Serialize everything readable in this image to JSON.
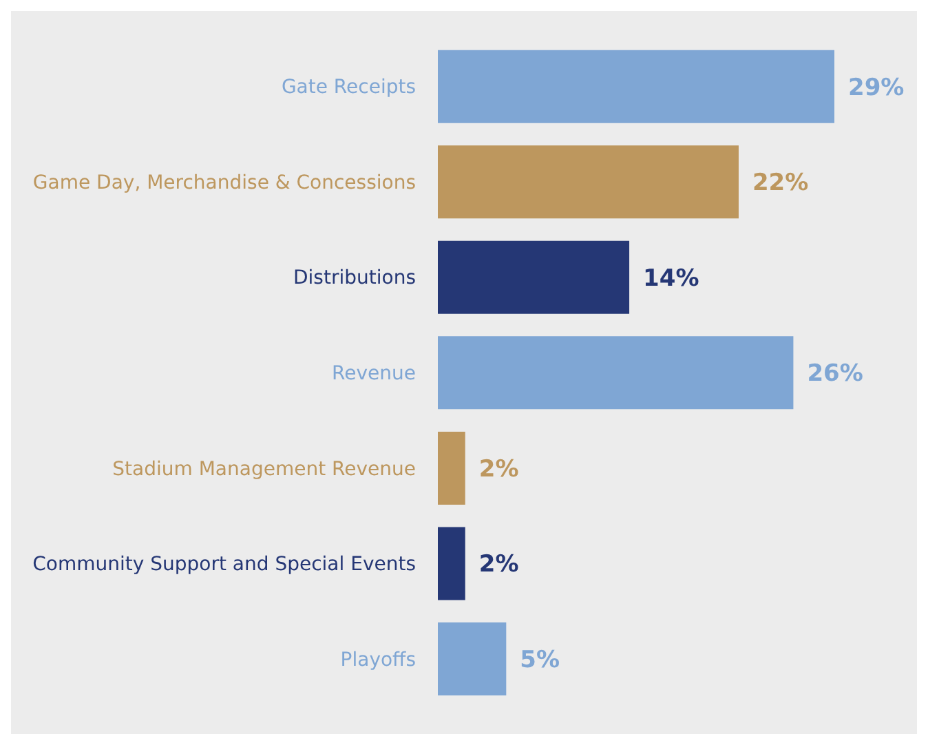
{
  "chart_data": {
    "type": "bar",
    "orientation": "horizontal",
    "categories": [
      "Gate Receipts",
      "Game Day, Merchandise & Concessions",
      "Distributions",
      "Revenue",
      "Stadium Management Revenue",
      "Community Support and Special Events",
      "Playoffs"
    ],
    "values": [
      29,
      22,
      14,
      26,
      2,
      2,
      5
    ],
    "value_labels": [
      "29%",
      "22%",
      "14%",
      "26%",
      "2%",
      "2%",
      "5%"
    ],
    "colors": [
      "#7fa6d4",
      "#bd975e",
      "#253775",
      "#7fa6d4",
      "#bd975e",
      "#253775",
      "#7fa6d4"
    ],
    "tick_labels": "y",
    "grid": false
  }
}
